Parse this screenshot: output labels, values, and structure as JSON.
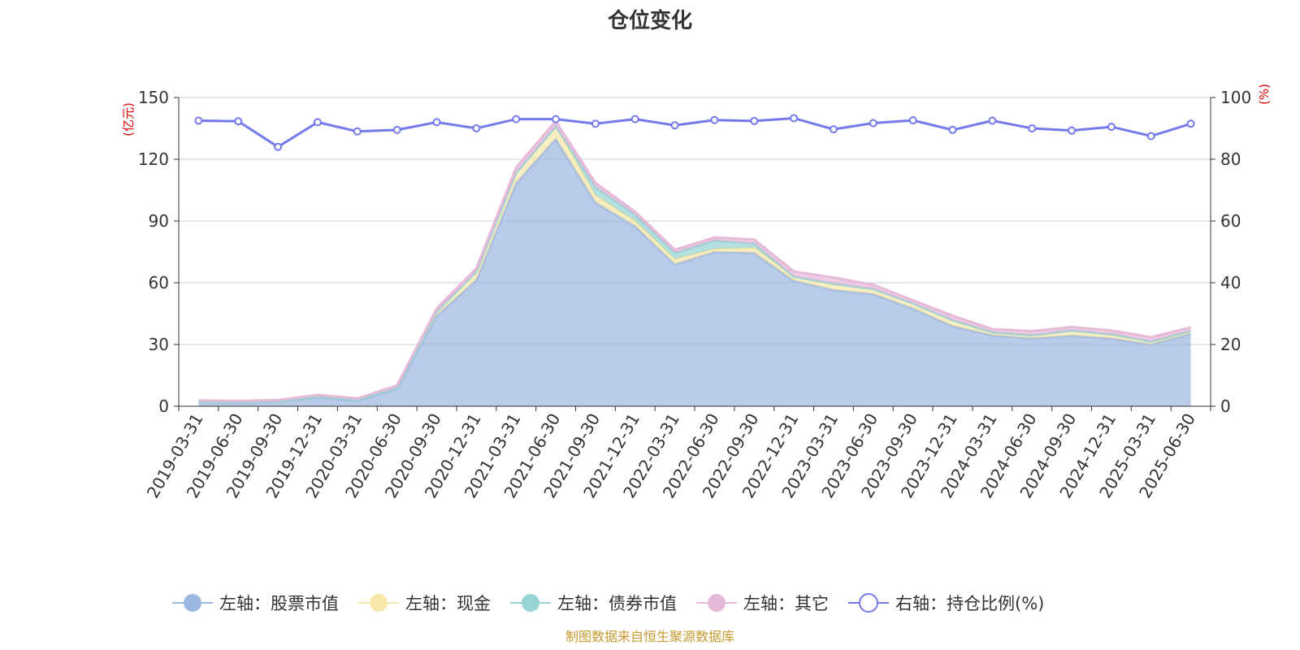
{
  "chart_data": {
    "type": "area",
    "title": "仓位变化",
    "left_axis": {
      "unit": "(亿元)",
      "range": [
        0,
        150
      ],
      "ticks": [
        0,
        30,
        60,
        90,
        120,
        150
      ]
    },
    "right_axis": {
      "unit": "(%)",
      "range": [
        0,
        100
      ],
      "ticks": [
        0,
        20,
        40,
        60,
        80,
        100
      ]
    },
    "categories": [
      "2019-03-31",
      "2019-06-30",
      "2019-09-30",
      "2019-12-31",
      "2020-03-31",
      "2020-06-30",
      "2020-09-30",
      "2020-12-31",
      "2021-03-31",
      "2021-06-30",
      "2021-09-30",
      "2021-12-31",
      "2022-03-31",
      "2022-06-30",
      "2022-09-30",
      "2022-12-31",
      "2023-03-31",
      "2023-06-30",
      "2023-09-30",
      "2023-12-31",
      "2024-03-31",
      "2024-06-30",
      "2024-09-30",
      "2024-12-31",
      "2025-03-31",
      "2025-06-30"
    ],
    "series": [
      {
        "name": "左轴：股票市值",
        "axis": "left",
        "color": "#9db8e0",
        "values": [
          2,
          1.8,
          2.2,
          4.3,
          2.8,
          8.5,
          44,
          61.5,
          108.5,
          130,
          99,
          87.5,
          69,
          75,
          74.5,
          61,
          56.5,
          54.5,
          47.5,
          39,
          34.5,
          33,
          34.3,
          33,
          30,
          35.3
        ]
      },
      {
        "name": "左轴：现金",
        "axis": "left",
        "color": "#f7e8a9",
        "values": [
          0.3,
          0.3,
          0.3,
          0.5,
          0.4,
          0.6,
          2,
          4,
          5,
          6,
          3.5,
          2.5,
          2.5,
          1.5,
          2.5,
          2,
          3,
          2.5,
          2.5,
          2.8,
          1.5,
          1.5,
          2.5,
          2,
          1.5,
          1.3
        ]
      },
      {
        "name": "左轴：债券市值",
        "axis": "left",
        "color": "#97d4d3",
        "values": [
          0,
          0,
          0,
          0,
          0,
          0,
          0,
          0,
          0,
          0,
          4,
          3,
          3,
          4,
          2,
          0,
          0,
          0,
          0,
          0,
          0,
          0,
          0,
          0,
          0,
          0
        ]
      },
      {
        "name": "左轴：其它",
        "axis": "left",
        "color": "#e6b9d9",
        "values": [
          0.5,
          0.5,
          0.5,
          0.7,
          0.6,
          1,
          1.5,
          1.5,
          2.5,
          2.5,
          2,
          1.5,
          1.5,
          1.5,
          2,
          2.5,
          3,
          2,
          1.5,
          2.2,
          1.5,
          2,
          1.7,
          1.8,
          2,
          1.7
        ]
      },
      {
        "name": "右轴：持仓比例(%)",
        "axis": "right",
        "color": "#7479ec",
        "type": "line",
        "values": [
          92.5,
          92.3,
          84,
          92,
          89,
          89.5,
          92,
          90,
          93,
          93,
          91.5,
          93,
          91,
          92.7,
          92.4,
          93.3,
          89.7,
          91.7,
          92.6,
          89.5,
          92.5,
          90,
          89.3,
          90.5,
          87.5,
          91.5
        ]
      }
    ]
  },
  "footer": {
    "source": "制图数据来自恒生聚源数据库"
  },
  "colors": {
    "axis_unit": "#e00000",
    "source": "#c69a2e",
    "grid": "#cccccc",
    "axis_line": "#333333"
  }
}
